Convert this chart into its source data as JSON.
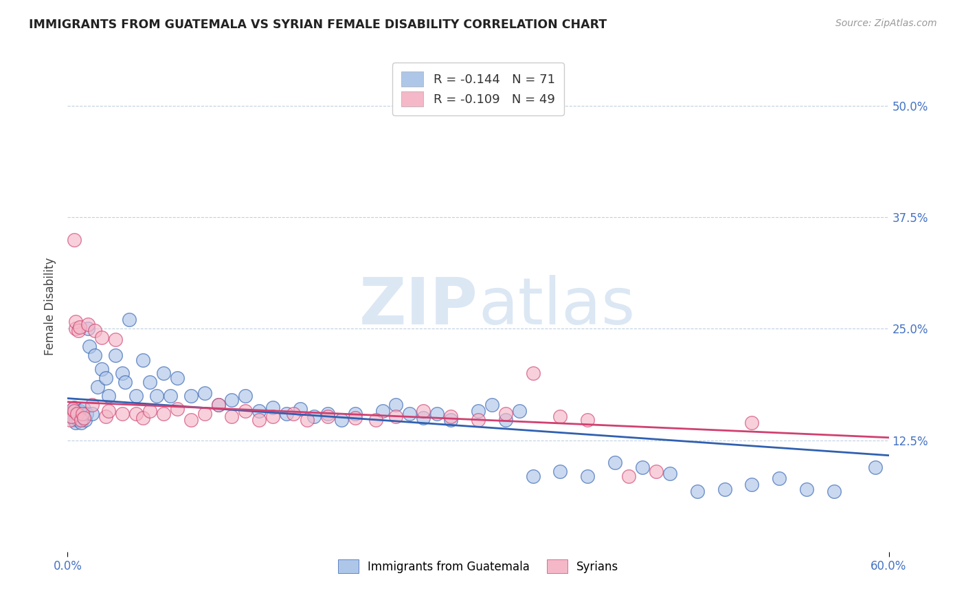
{
  "title": "IMMIGRANTS FROM GUATEMALA VS SYRIAN FEMALE DISABILITY CORRELATION CHART",
  "source": "Source: ZipAtlas.com",
  "ylabel": "Female Disability",
  "xlim": [
    0.0,
    0.6
  ],
  "ylim": [
    0.0,
    0.55
  ],
  "yticks": [
    0.125,
    0.25,
    0.375,
    0.5
  ],
  "ytick_labels": [
    "12.5%",
    "25.0%",
    "37.5%",
    "50.0%"
  ],
  "xticks": [
    0.0,
    0.6
  ],
  "xtick_labels": [
    "0.0%",
    "60.0%"
  ],
  "series1_color": "#aec6e8",
  "series2_color": "#f4b8c8",
  "trend1_color": "#3060b0",
  "trend2_color": "#d04070",
  "legend_label1": "Immigrants from Guatemala",
  "legend_label2": "Syrians",
  "R1": -0.144,
  "N1": 71,
  "R2": -0.109,
  "N2": 49,
  "watermark_zip": "ZIP",
  "watermark_atlas": "atlas",
  "background_color": "#ffffff",
  "grid_color": "#c0d0e0",
  "title_color": "#222222",
  "axis_color": "#4472c4",
  "ylabel_color": "#444444",
  "trend1_start_y": 0.172,
  "trend1_end_y": 0.108,
  "trend2_start_y": 0.168,
  "trend2_end_y": 0.128,
  "Guatemala_x": [
    0.002,
    0.003,
    0.004,
    0.005,
    0.005,
    0.006,
    0.006,
    0.007,
    0.008,
    0.009,
    0.01,
    0.01,
    0.011,
    0.012,
    0.013,
    0.014,
    0.015,
    0.016,
    0.018,
    0.02,
    0.022,
    0.025,
    0.028,
    0.03,
    0.035,
    0.04,
    0.042,
    0.045,
    0.05,
    0.055,
    0.06,
    0.065,
    0.07,
    0.075,
    0.08,
    0.09,
    0.1,
    0.11,
    0.12,
    0.13,
    0.14,
    0.15,
    0.16,
    0.17,
    0.18,
    0.19,
    0.2,
    0.21,
    0.23,
    0.24,
    0.25,
    0.26,
    0.27,
    0.28,
    0.3,
    0.31,
    0.32,
    0.33,
    0.34,
    0.36,
    0.38,
    0.4,
    0.42,
    0.44,
    0.46,
    0.48,
    0.5,
    0.52,
    0.54,
    0.56,
    0.59
  ],
  "Guatemala_y": [
    0.155,
    0.152,
    0.158,
    0.148,
    0.162,
    0.15,
    0.145,
    0.155,
    0.148,
    0.158,
    0.145,
    0.155,
    0.152,
    0.16,
    0.148,
    0.155,
    0.25,
    0.23,
    0.155,
    0.22,
    0.185,
    0.205,
    0.195,
    0.175,
    0.22,
    0.2,
    0.19,
    0.26,
    0.175,
    0.215,
    0.19,
    0.175,
    0.2,
    0.175,
    0.195,
    0.175,
    0.178,
    0.165,
    0.17,
    0.175,
    0.158,
    0.162,
    0.155,
    0.16,
    0.152,
    0.155,
    0.148,
    0.155,
    0.158,
    0.165,
    0.155,
    0.15,
    0.155,
    0.148,
    0.158,
    0.165,
    0.148,
    0.158,
    0.085,
    0.09,
    0.085,
    0.1,
    0.095,
    0.088,
    0.068,
    0.07,
    0.075,
    0.082,
    0.07,
    0.068,
    0.095
  ],
  "Syrian_x": [
    0.002,
    0.003,
    0.004,
    0.005,
    0.005,
    0.006,
    0.006,
    0.007,
    0.008,
    0.009,
    0.01,
    0.011,
    0.012,
    0.015,
    0.018,
    0.02,
    0.025,
    0.028,
    0.03,
    0.035,
    0.04,
    0.05,
    0.055,
    0.06,
    0.07,
    0.08,
    0.09,
    0.1,
    0.11,
    0.12,
    0.13,
    0.14,
    0.15,
    0.165,
    0.175,
    0.19,
    0.21,
    0.225,
    0.24,
    0.26,
    0.28,
    0.3,
    0.32,
    0.34,
    0.36,
    0.38,
    0.41,
    0.43,
    0.5
  ],
  "Syrian_y": [
    0.148,
    0.152,
    0.16,
    0.35,
    0.158,
    0.25,
    0.258,
    0.155,
    0.248,
    0.252,
    0.148,
    0.155,
    0.15,
    0.255,
    0.165,
    0.248,
    0.24,
    0.152,
    0.158,
    0.238,
    0.155,
    0.155,
    0.15,
    0.158,
    0.155,
    0.16,
    0.148,
    0.155,
    0.165,
    0.152,
    0.158,
    0.148,
    0.152,
    0.155,
    0.148,
    0.152,
    0.15,
    0.148,
    0.152,
    0.158,
    0.152,
    0.148,
    0.155,
    0.2,
    0.152,
    0.148,
    0.085,
    0.09,
    0.145
  ]
}
